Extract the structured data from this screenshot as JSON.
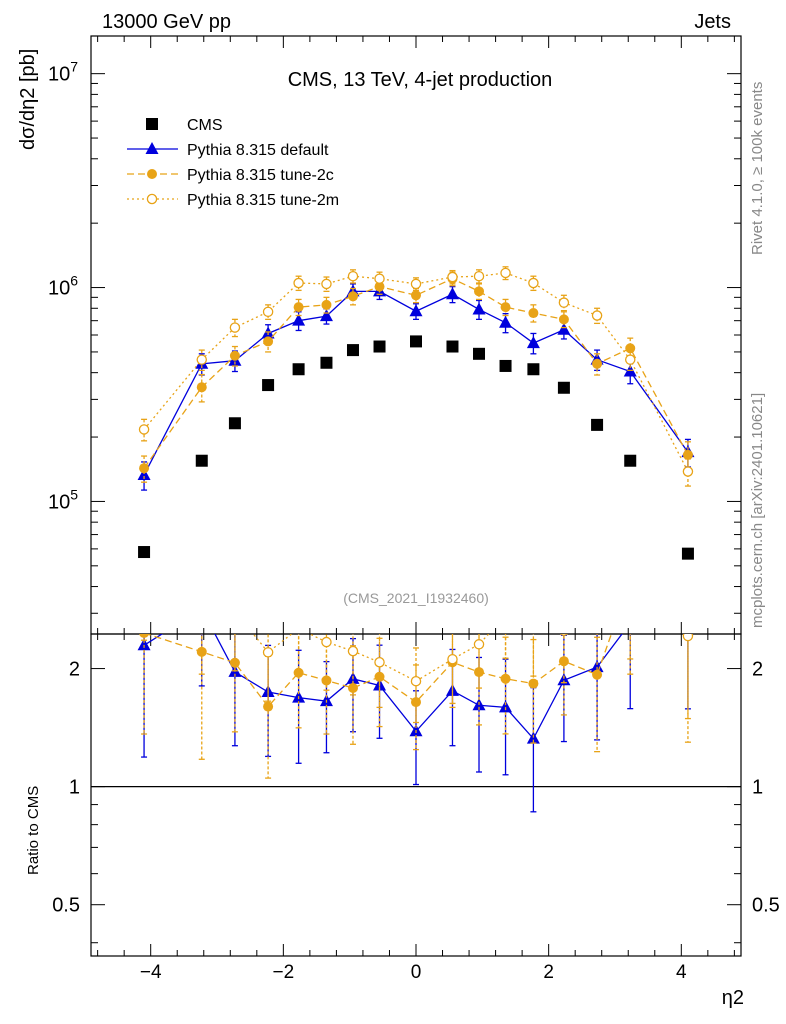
{
  "header": {
    "left": "13000 GeV pp",
    "right": "Jets"
  },
  "side": {
    "rivet": "Rivet 4.1.0, ≥ 100k events",
    "mcplots": "mcplots.cern.ch [arXiv:2401.10621]"
  },
  "chart_data": {
    "type": "scatter",
    "title": "CMS, 13 TeV, 4-jet production",
    "analysis_tag": "(CMS_2021_I1932460)",
    "xlabel": "η2",
    "ylabel": "dσ/dη2 [pb]",
    "ratio_ylabel": "Ratio to CMS",
    "xlim": [
      -4.9,
      4.9
    ],
    "ylim": [
      24000,
      15000000
    ],
    "yscale": "log",
    "ratio_ylim": [
      0.37,
      2.45
    ],
    "ratio_yscale": "log",
    "x_ticks": [
      "−4",
      "−2",
      "0",
      "2",
      "4"
    ],
    "x_tick_values": [
      -4,
      -2,
      0,
      2,
      4
    ],
    "y_ticks": [
      {
        "value": 100000,
        "base": "10",
        "exp": "5"
      },
      {
        "value": 1000000,
        "base": "10",
        "exp": "6"
      },
      {
        "value": 10000000,
        "base": "10",
        "exp": "7"
      }
    ],
    "ratio_ticks": [
      {
        "value": 0.5,
        "label": "0.5"
      },
      {
        "value": 1,
        "label": "1"
      },
      {
        "value": 2,
        "label": "2"
      }
    ],
    "x": [
      -4.1,
      -3.23,
      -2.73,
      -2.23,
      -1.77,
      -1.35,
      -0.95,
      -0.55,
      0.0,
      0.55,
      0.95,
      1.35,
      1.77,
      2.23,
      2.73,
      3.23,
      4.1
    ],
    "series": [
      {
        "name": "CMS",
        "color": "#000000",
        "marker": "square",
        "values": [
          58000,
          155000,
          232000,
          350000,
          415000,
          445000,
          510000,
          530000,
          560000,
          530000,
          490000,
          430000,
          415000,
          340000,
          228000,
          155000,
          57000
        ]
      },
      {
        "name": "Pythia 8.315 default",
        "color": "#0000dd",
        "marker": "triangle",
        "line": "solid",
        "values": [
          133000,
          440000,
          455000,
          610000,
          700000,
          735000,
          960000,
          960000,
          775000,
          930000,
          790000,
          685000,
          550000,
          635000,
          460000,
          405000,
          170000
        ],
        "errors": [
          20000,
          50000,
          50000,
          60000,
          70000,
          60000,
          80000,
          80000,
          65000,
          80000,
          80000,
          70000,
          60000,
          60000,
          50000,
          50000,
          25000
        ]
      },
      {
        "name": "Pythia 8.315 tune-2c",
        "color": "#e8a317",
        "marker": "circle",
        "line": "dashed",
        "values": [
          143000,
          342000,
          480000,
          560000,
          810000,
          830000,
          910000,
          1010000,
          920000,
          1100000,
          960000,
          810000,
          760000,
          710000,
          440000,
          520000,
          165000
        ],
        "errors": [
          20000,
          50000,
          50000,
          60000,
          70000,
          70000,
          80000,
          80000,
          70000,
          80000,
          80000,
          70000,
          70000,
          60000,
          50000,
          60000,
          25000
        ]
      },
      {
        "name": "Pythia 8.315 tune-2m",
        "color": "#e8a317",
        "marker": "open-circle",
        "line": "dotted",
        "values": [
          217000,
          460000,
          650000,
          770000,
          1050000,
          1040000,
          1130000,
          1100000,
          1040000,
          1120000,
          1130000,
          1170000,
          1050000,
          850000,
          740000,
          460000,
          138000
        ],
        "errors": [
          25000,
          50000,
          60000,
          60000,
          80000,
          80000,
          80000,
          80000,
          70000,
          80000,
          80000,
          80000,
          80000,
          70000,
          60000,
          50000,
          20000
        ]
      }
    ]
  }
}
